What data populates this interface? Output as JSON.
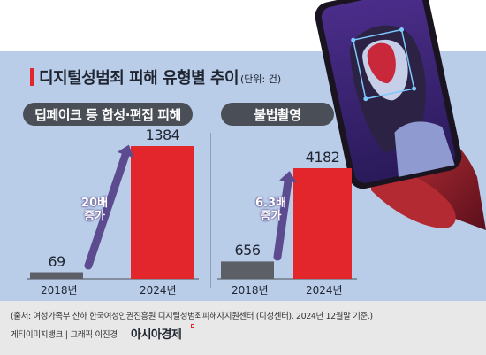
{
  "title": "디지털성범죄 피해 유형별 추이",
  "unit": "(단위: 건)",
  "colors": {
    "panel": "#b9cde8",
    "accent": "#e3262b",
    "bar_2018": "#5c5f66",
    "bar_2024": "#e3262b",
    "arrow": "#5c4b8f"
  },
  "chart_data": [
    {
      "type": "bar",
      "title": "딥페이크 등 합성·편집 피해",
      "categories": [
        "2018년",
        "2024년"
      ],
      "values": [
        69,
        1384
      ],
      "value_labels": [
        "69",
        "1384"
      ],
      "growth_label": [
        "20배",
        "증가"
      ]
    },
    {
      "type": "bar",
      "title": "불법촬영",
      "categories": [
        "2018년",
        "2024년"
      ],
      "values": [
        656,
        4182
      ],
      "value_labels": [
        "656",
        "4182"
      ],
      "growth_label": [
        "6.3배",
        "증가"
      ]
    }
  ],
  "source": "(출처: 여성가족부 산하 한국여성인권진흥원 디지털성범죄피해자지원센터 (디성센터). 2024년 12월말 기준.)",
  "credit": "게티이미지뱅크 | 그래픽 이진경",
  "logo": "아시아경제",
  "illustration": "phone-face-scan-icon"
}
